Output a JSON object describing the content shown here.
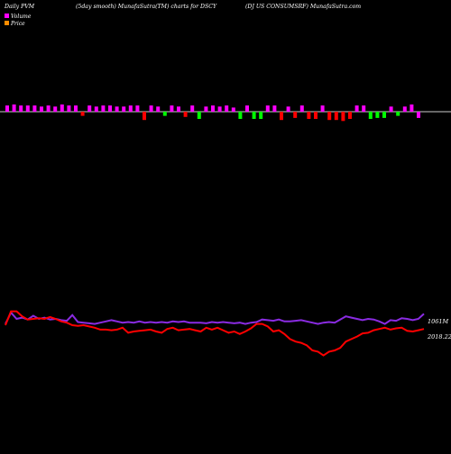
{
  "header": {
    "left": "Daily PVM",
    "middle": "(5day smooth) MunafaSutra(TM) charts for DSCY",
    "right": "(DJ US CONSUMSRF) MunafaSutra.com"
  },
  "legend": [
    {
      "label": "Volume",
      "color": "#ff00ff"
    },
    {
      "label": "Price",
      "color": "#ff8c00"
    }
  ],
  "colors": {
    "background": "#000000",
    "baseline": "#cccccc",
    "bar_neutral": "#ff00ff",
    "bar_up": "#00ff00",
    "bar_down": "#ff0000",
    "volume_line": "#8a2be2",
    "price_line": "#ff0000"
  },
  "chart_data": [
    {
      "type": "bar",
      "title": "",
      "grid": false,
      "ylim": [
        -10,
        10
      ],
      "values": [
        6,
        7,
        6,
        6,
        6,
        5,
        6,
        5,
        7,
        6,
        6,
        -4,
        6,
        5,
        6,
        6,
        5,
        5,
        6,
        6,
        -8,
        6,
        5,
        -4,
        6,
        5,
        -5,
        6,
        -7,
        5,
        6,
        5,
        6,
        4,
        -7,
        6,
        -7,
        -7,
        6,
        6,
        -8,
        5,
        -6,
        6,
        -7,
        -7,
        6,
        -8,
        -8,
        -9,
        -7,
        6,
        6,
        -7,
        -6,
        -6,
        5,
        -4,
        5,
        7,
        -6
      ],
      "direction": [
        "n",
        "n",
        "n",
        "n",
        "n",
        "n",
        "n",
        "n",
        "n",
        "n",
        "n",
        "d",
        "n",
        "n",
        "n",
        "n",
        "n",
        "n",
        "n",
        "n",
        "d",
        "n",
        "n",
        "u",
        "n",
        "n",
        "d",
        "n",
        "u",
        "n",
        "n",
        "n",
        "n",
        "n",
        "u",
        "n",
        "u",
        "u",
        "n",
        "n",
        "d",
        "n",
        "d",
        "n",
        "d",
        "d",
        "n",
        "d",
        "d",
        "d",
        "d",
        "n",
        "n",
        "u",
        "u",
        "u",
        "n",
        "u",
        "n",
        "n",
        "n"
      ]
    },
    {
      "type": "line",
      "title": "",
      "grid": false,
      "series": [
        {
          "name": "Volume",
          "last_label": "1061M",
          "values": [
            72,
            90,
            80,
            82,
            79,
            85,
            80,
            82,
            79,
            80,
            78,
            77,
            86,
            75,
            74,
            73,
            72,
            74,
            76,
            78,
            76,
            74,
            75,
            74,
            76,
            74,
            75,
            74,
            75,
            74,
            76,
            75,
            76,
            74,
            74,
            74,
            73,
            75,
            74,
            75,
            74,
            73,
            74,
            72,
            74,
            75,
            79,
            78,
            77,
            79,
            76,
            76,
            77,
            78,
            76,
            74,
            72,
            74,
            75,
            74,
            79,
            84,
            82,
            80,
            78,
            80,
            79,
            76,
            72,
            78,
            77,
            81,
            80,
            78,
            80,
            88
          ]
        },
        {
          "name": "Price",
          "last_label": "2018.22",
          "values": [
            70,
            92,
            92,
            84,
            79,
            80,
            81,
            80,
            83,
            80,
            76,
            74,
            70,
            69,
            70,
            68,
            66,
            63,
            63,
            62,
            63,
            66,
            58,
            60,
            61,
            62,
            63,
            60,
            58,
            64,
            66,
            62,
            63,
            64,
            62,
            60,
            66,
            63,
            66,
            62,
            58,
            60,
            56,
            60,
            65,
            72,
            72,
            68,
            60,
            62,
            56,
            48,
            44,
            42,
            38,
            30,
            28,
            22,
            28,
            30,
            34,
            44,
            48,
            52,
            57,
            58,
            62,
            64,
            66,
            63,
            65,
            66,
            61,
            60,
            62,
            64
          ]
        }
      ]
    }
  ]
}
